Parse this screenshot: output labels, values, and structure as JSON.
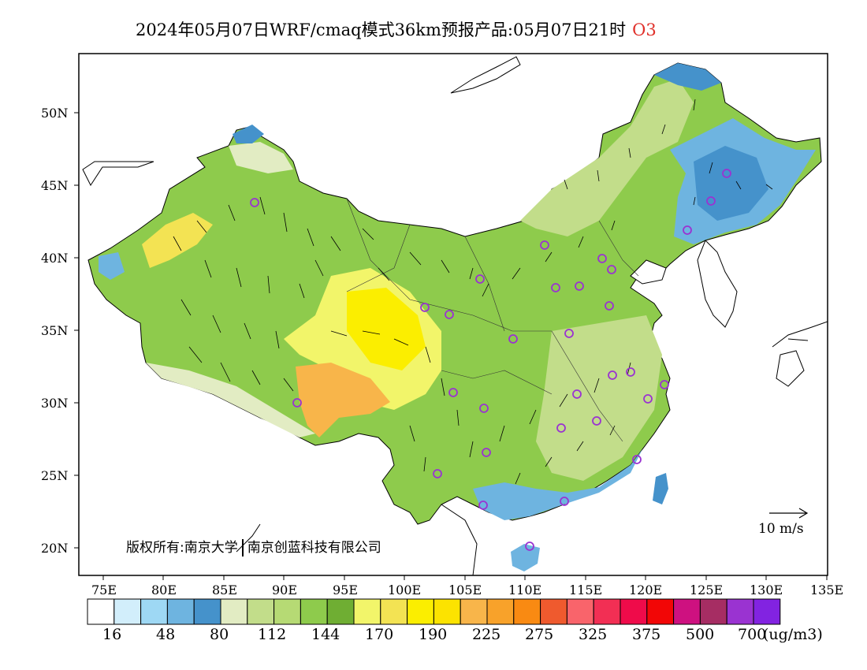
{
  "title": {
    "text": "2024年05月07日WRF/cmaq模式36km预报产品:05月07日21时",
    "pollutant": "O3",
    "pollutant_color": "#e0302a"
  },
  "copyright": {
    "left": "版权所有:南京大学",
    "right": "南京创蓝科技有限公司"
  },
  "wind_scale": {
    "label": "10 m/s"
  },
  "axes": {
    "latitudes": [
      "50N",
      "45N",
      "40N",
      "35N",
      "30N",
      "25N",
      "20N"
    ],
    "longitudes": [
      "75E",
      "80E",
      "85E",
      "90E",
      "95E",
      "100E",
      "105E",
      "110E",
      "115E",
      "120E",
      "125E",
      "130E",
      "135E"
    ]
  },
  "colorbar": {
    "colors": [
      "#ffffff",
      "#d2eefb",
      "#9ed8f4",
      "#6eb4e0",
      "#4592cb",
      "#e2ecc3",
      "#c2dd8a",
      "#b6da74",
      "#8ecb4c",
      "#6fae33",
      "#f2f56a",
      "#f3e353",
      "#fbee00",
      "#fce300",
      "#f8b54a",
      "#f8a22a",
      "#f98a12",
      "#ef5a2e",
      "#f9646b",
      "#f22f54",
      "#ef0b4a",
      "#f20606",
      "#ce1180",
      "#a62d63",
      "#9a33d1",
      "#8223e1"
    ],
    "labels": [
      "16",
      "48",
      "80",
      "112",
      "144",
      "170",
      "190",
      "225",
      "275",
      "325",
      "375",
      "500",
      "700"
    ],
    "unit": "(ug/m3)"
  }
}
